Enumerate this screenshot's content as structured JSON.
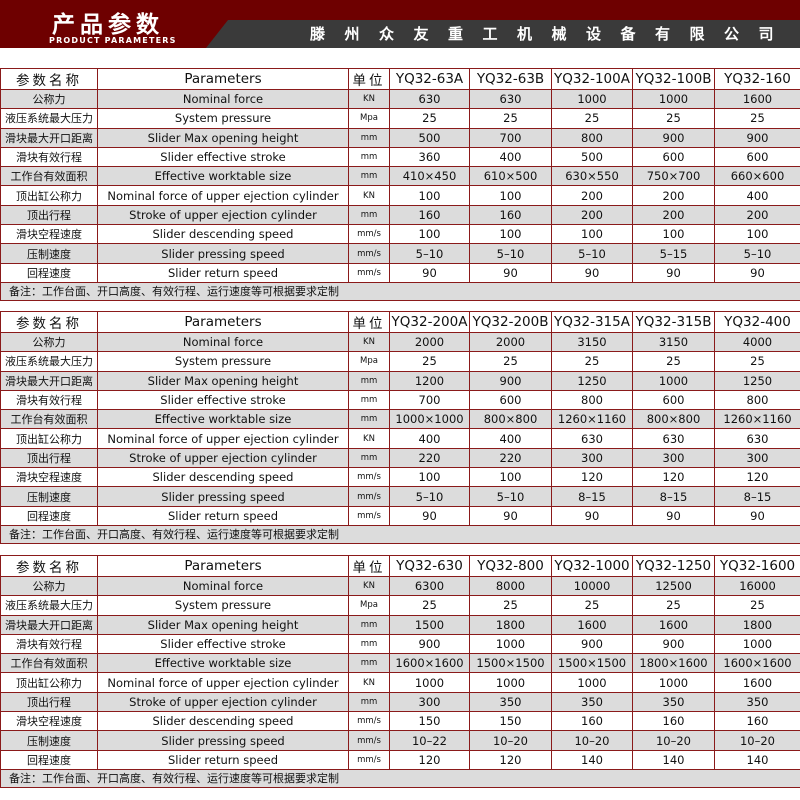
{
  "header": {
    "title_cn": "产品参数",
    "title_en": "PRODUCT PARAMETERS",
    "company": "滕州众友重工机械设备有限公司"
  },
  "columns": {
    "name_cn": "参数名称",
    "name_en": "Parameters",
    "unit": "单位"
  },
  "rows": [
    {
      "cn": "公称力",
      "en": "Nominal force",
      "unit": "KN"
    },
    {
      "cn": "液压系统最大压力",
      "en": "System pressure",
      "unit": "Mpa"
    },
    {
      "cn": "滑块最大开口距离",
      "en": "Slider Max opening height",
      "unit": "mm"
    },
    {
      "cn": "滑块有效行程",
      "en": "Slider effective stroke",
      "unit": "mm"
    },
    {
      "cn": "工作台有效面积",
      "en": "Effective worktable size",
      "unit": "mm"
    },
    {
      "cn": "顶出缸公称力",
      "en": "Nominal force of upper ejection cylinder",
      "unit": "KN"
    },
    {
      "cn": "顶出行程",
      "en": "Stroke of upper ejection cylinder",
      "unit": "mm"
    },
    {
      "cn": "滑块空程速度",
      "en": "Slider descending speed",
      "unit": "mm/s"
    },
    {
      "cn": "压制速度",
      "en": "Slider pressing speed",
      "unit": "mm/s"
    },
    {
      "cn": "回程速度",
      "en": "Slider return speed",
      "unit": "mm/s"
    }
  ],
  "note": "备注：工作台面、开口高度、有效行程、运行速度等可根据要求定制",
  "tables": [
    {
      "models": [
        "YQ32-63A",
        "YQ32-63B",
        "YQ32-100A",
        "YQ32-100B",
        "YQ32-160"
      ],
      "values": [
        [
          "630",
          "630",
          "1000",
          "1000",
          "1600"
        ],
        [
          "25",
          "25",
          "25",
          "25",
          "25"
        ],
        [
          "500",
          "700",
          "800",
          "900",
          "900"
        ],
        [
          "360",
          "400",
          "500",
          "600",
          "600"
        ],
        [
          "410×450",
          "610×500",
          "630×550",
          "750×700",
          "660×600"
        ],
        [
          "100",
          "100",
          "200",
          "200",
          "400"
        ],
        [
          "160",
          "160",
          "200",
          "200",
          "200"
        ],
        [
          "100",
          "100",
          "100",
          "100",
          "100"
        ],
        [
          "5–10",
          "5–10",
          "5–10",
          "5–15",
          "5–10"
        ],
        [
          "90",
          "90",
          "90",
          "90",
          "90"
        ]
      ]
    },
    {
      "models": [
        "YQ32-200A",
        "YQ32-200B",
        "YQ32-315A",
        "YQ32-315B",
        "YQ32-400"
      ],
      "values": [
        [
          "2000",
          "2000",
          "3150",
          "3150",
          "4000"
        ],
        [
          "25",
          "25",
          "25",
          "25",
          "25"
        ],
        [
          "1200",
          "900",
          "1250",
          "1000",
          "1250"
        ],
        [
          "700",
          "600",
          "800",
          "600",
          "800"
        ],
        [
          "1000×1000",
          "800×800",
          "1260×1160",
          "800×800",
          "1260×1160"
        ],
        [
          "400",
          "400",
          "630",
          "630",
          "630"
        ],
        [
          "220",
          "220",
          "300",
          "300",
          "300"
        ],
        [
          "100",
          "100",
          "120",
          "120",
          "120"
        ],
        [
          "5–10",
          "5–10",
          "8–15",
          "8–15",
          "8–15"
        ],
        [
          "90",
          "90",
          "90",
          "90",
          "90"
        ]
      ]
    },
    {
      "models": [
        "YQ32-630",
        "YQ32-800",
        "YQ32-1000",
        "YQ32-1250",
        "YQ32-1600"
      ],
      "values": [
        [
          "6300",
          "8000",
          "10000",
          "12500",
          "16000"
        ],
        [
          "25",
          "25",
          "25",
          "25",
          "25"
        ],
        [
          "1500",
          "1800",
          "1600",
          "1600",
          "1800"
        ],
        [
          "900",
          "1000",
          "900",
          "900",
          "1000"
        ],
        [
          "1600×1600",
          "1500×1500",
          "1500×1500",
          "1800×1600",
          "1600×1600"
        ],
        [
          "1000",
          "1000",
          "1000",
          "1000",
          "1600"
        ],
        [
          "300",
          "350",
          "350",
          "350",
          "350"
        ],
        [
          "150",
          "150",
          "160",
          "160",
          "160"
        ],
        [
          "10–22",
          "10–20",
          "10–20",
          "10–20",
          "10–20"
        ],
        [
          "120",
          "120",
          "140",
          "140",
          "140"
        ]
      ]
    }
  ]
}
